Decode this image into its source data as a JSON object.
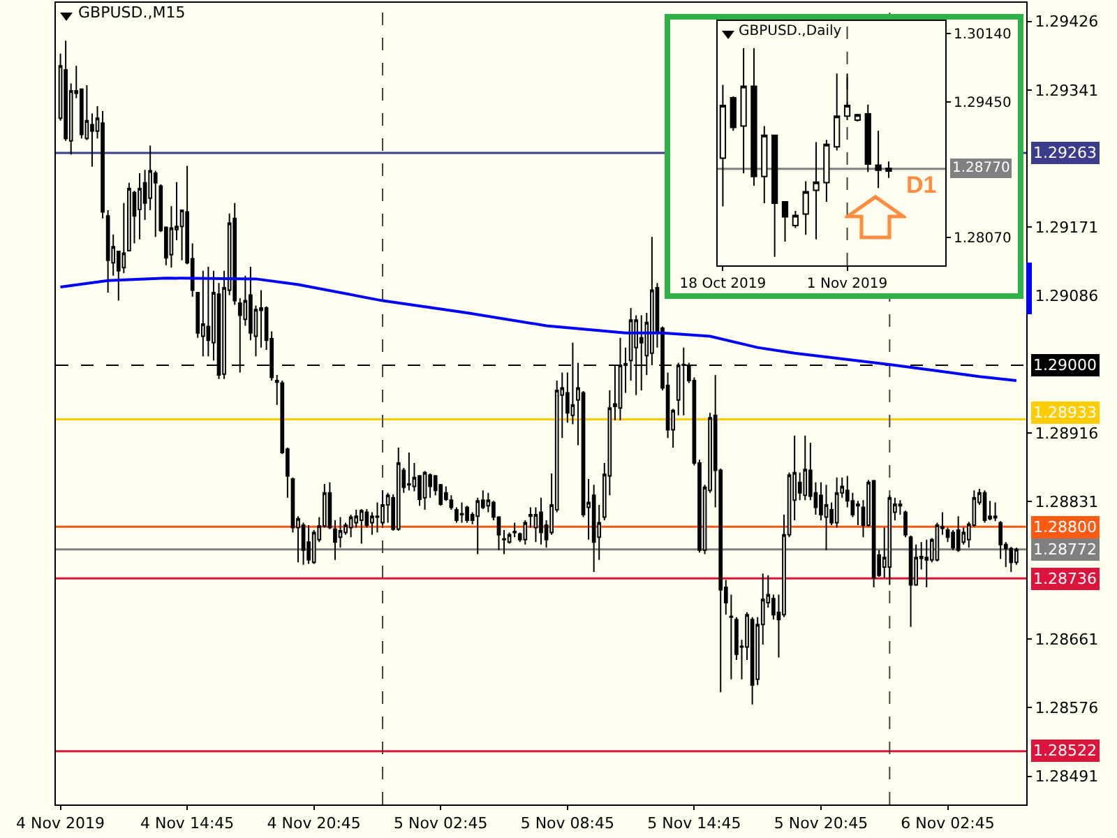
{
  "chart_data": [
    {
      "type": "candlestick",
      "title": "GBPUSD.,M15",
      "color": "#000000",
      "x": [
        "2019-11-04T08:45",
        "2019-11-04T09:00",
        "2019-11-04T09:15",
        "2019-11-04T09:30",
        "2019-11-04T09:45",
        "2019-11-04T10:00",
        "2019-11-04T10:15",
        "2019-11-04T10:30",
        "2019-11-04T10:45",
        "2019-11-04T11:00",
        "2019-11-04T11:15",
        "2019-11-04T11:30",
        "2019-11-04T11:45",
        "2019-11-04T12:00",
        "2019-11-04T12:15",
        "2019-11-04T12:30",
        "2019-11-04T12:45",
        "2019-11-04T13:00",
        "2019-11-04T13:15",
        "2019-11-04T13:30",
        "2019-11-04T13:45",
        "2019-11-04T14:00",
        "2019-11-04T14:15",
        "2019-11-04T14:30",
        "2019-11-04T14:45",
        "2019-11-04T15:00",
        "2019-11-04T15:15",
        "2019-11-04T15:30",
        "2019-11-04T15:45",
        "2019-11-04T16:00",
        "2019-11-04T16:15",
        "2019-11-04T16:30",
        "2019-11-04T16:45",
        "2019-11-04T17:00",
        "2019-11-04T17:15",
        "2019-11-04T17:30",
        "2019-11-04T17:45",
        "2019-11-04T18:00",
        "2019-11-04T18:15",
        "2019-11-04T18:30",
        "2019-11-04T18:45",
        "2019-11-04T19:00",
        "2019-11-04T19:15",
        "2019-11-04T19:30",
        "2019-11-04T19:45",
        "2019-11-04T20:00",
        "2019-11-04T20:15",
        "2019-11-04T20:30",
        "2019-11-04T20:45",
        "2019-11-04T21:00",
        "2019-11-04T21:15",
        "2019-11-04T21:30",
        "2019-11-04T21:45",
        "2019-11-04T22:00",
        "2019-11-04T22:15",
        "2019-11-04T22:30",
        "2019-11-04T22:45",
        "2019-11-04T23:00",
        "2019-11-04T23:15",
        "2019-11-04T23:30",
        "2019-11-04T23:45",
        "2019-11-05T00:00",
        "2019-11-05T00:15",
        "2019-11-05T00:30",
        "2019-11-05T00:45",
        "2019-11-05T01:00",
        "2019-11-05T01:15",
        "2019-11-05T01:30",
        "2019-11-05T01:45",
        "2019-11-05T02:00",
        "2019-11-05T02:15",
        "2019-11-05T02:30",
        "2019-11-05T02:45",
        "2019-11-05T03:00",
        "2019-11-05T03:15",
        "2019-11-05T03:30",
        "2019-11-05T03:45",
        "2019-11-05T04:00",
        "2019-11-05T04:15",
        "2019-11-05T04:30",
        "2019-11-05T04:45",
        "2019-11-05T05:00",
        "2019-11-05T05:15",
        "2019-11-05T05:30",
        "2019-11-05T05:45",
        "2019-11-05T06:00",
        "2019-11-05T06:15",
        "2019-11-05T06:30",
        "2019-11-05T06:45",
        "2019-11-05T07:00",
        "2019-11-05T07:15",
        "2019-11-05T07:30",
        "2019-11-05T07:45",
        "2019-11-05T08:00",
        "2019-11-05T08:15",
        "2019-11-05T08:30",
        "2019-11-05T08:45",
        "2019-11-05T09:00",
        "2019-11-05T09:15",
        "2019-11-05T09:30",
        "2019-11-05T09:45",
        "2019-11-05T10:00",
        "2019-11-05T10:15",
        "2019-11-05T10:30",
        "2019-11-05T10:45",
        "2019-11-05T11:00",
        "2019-11-05T11:15",
        "2019-11-05T11:30",
        "2019-11-05T11:45",
        "2019-11-05T12:00",
        "2019-11-05T12:15",
        "2019-11-05T12:30",
        "2019-11-05T12:45",
        "2019-11-05T13:00",
        "2019-11-05T13:15",
        "2019-11-05T13:30",
        "2019-11-05T13:45",
        "2019-11-05T14:00",
        "2019-11-05T14:15",
        "2019-11-05T14:30",
        "2019-11-05T14:45",
        "2019-11-05T15:00",
        "2019-11-05T15:15",
        "2019-11-05T15:30",
        "2019-11-05T15:45",
        "2019-11-05T16:00",
        "2019-11-05T16:15",
        "2019-11-05T16:30",
        "2019-11-05T16:45",
        "2019-11-05T17:00",
        "2019-11-05T17:15",
        "2019-11-05T17:30",
        "2019-11-05T17:45",
        "2019-11-05T18:00",
        "2019-11-05T18:15",
        "2019-11-05T18:30",
        "2019-11-05T18:45",
        "2019-11-05T19:00",
        "2019-11-05T19:15",
        "2019-11-05T19:30",
        "2019-11-05T19:45",
        "2019-11-05T20:00",
        "2019-11-05T20:15",
        "2019-11-05T20:30",
        "2019-11-05T20:45",
        "2019-11-05T21:00",
        "2019-11-05T21:15",
        "2019-11-05T21:30",
        "2019-11-05T21:45",
        "2019-11-05T22:00",
        "2019-11-05T22:15",
        "2019-11-05T22:30",
        "2019-11-05T22:45",
        "2019-11-05T23:00",
        "2019-11-05T23:15",
        "2019-11-05T23:30",
        "2019-11-05T23:45",
        "2019-11-06T00:00",
        "2019-11-06T00:15",
        "2019-11-06T00:30",
        "2019-11-06T00:45",
        "2019-11-06T01:00",
        "2019-11-06T01:15",
        "2019-11-06T01:30",
        "2019-11-06T01:45",
        "2019-11-06T02:00",
        "2019-11-06T02:15",
        "2019-11-06T02:30",
        "2019-11-06T02:45",
        "2019-11-06T03:00",
        "2019-11-06T03:15",
        "2019-11-06T03:30",
        "2019-11-06T03:45",
        "2019-11-06T04:00",
        "2019-11-06T04:15",
        "2019-11-06T04:30",
        "2019-11-06T04:45",
        "2019-11-06T05:00",
        "2019-11-06T05:15",
        "2019-11-06T05:30",
        "2019-11-06T05:45",
        "2019-11-06T06:00"
      ],
      "ohlc": [
        [
          1.29306,
          1.29386,
          1.29303,
          1.29371
        ],
        [
          1.29366,
          1.29402,
          1.29278,
          1.29281
        ],
        [
          1.29278,
          1.29349,
          1.29261,
          1.2934
        ],
        [
          1.2934,
          1.29371,
          1.29331,
          1.29337
        ],
        [
          1.29342,
          1.29343,
          1.29281,
          1.29286
        ],
        [
          1.29281,
          1.29347,
          1.29279,
          1.29303
        ],
        [
          1.29298,
          1.29312,
          1.29246,
          1.2929
        ],
        [
          1.2929,
          1.29321,
          1.29281,
          1.29306
        ],
        [
          1.293,
          1.29315,
          1.29182,
          1.2919
        ],
        [
          1.29185,
          1.29192,
          1.2909,
          1.2913
        ],
        [
          1.29127,
          1.29162,
          1.29111,
          1.29147
        ],
        [
          1.29141,
          1.29142,
          1.2908,
          1.29117
        ],
        [
          1.29121,
          1.29201,
          1.29114,
          1.29139
        ],
        [
          1.29142,
          1.29226,
          1.29141,
          1.29219
        ],
        [
          1.29214,
          1.29216,
          1.29151,
          1.29185
        ],
        [
          1.29193,
          1.29238,
          1.29156,
          1.29219
        ],
        [
          1.29226,
          1.29242,
          1.2918,
          1.29201
        ],
        [
          1.29207,
          1.29272,
          1.29192,
          1.29241
        ],
        [
          1.29238,
          1.29241,
          1.29159,
          1.29226
        ],
        [
          1.29222,
          1.29224,
          1.29165,
          1.29167
        ],
        [
          1.29171,
          1.29172,
          1.29124,
          1.29133
        ],
        [
          1.29137,
          1.29197,
          1.29121,
          1.2917
        ],
        [
          1.29168,
          1.29227,
          1.29155,
          1.29172
        ],
        [
          1.29172,
          1.29193,
          1.2913,
          1.29192
        ],
        [
          1.2919,
          1.29247,
          1.29125,
          1.29127
        ],
        [
          1.29132,
          1.29151,
          1.29085,
          1.29093
        ],
        [
          1.2909,
          1.29091,
          1.29034,
          1.2904
        ],
        [
          1.29036,
          1.29117,
          1.29011,
          1.29051
        ],
        [
          1.29048,
          1.29122,
          1.29011,
          1.29031
        ],
        [
          1.29028,
          1.29117,
          1.29006,
          1.2909
        ],
        [
          1.29088,
          1.29102,
          1.28983,
          1.28988
        ],
        [
          1.28989,
          1.29117,
          1.28983,
          1.29096
        ],
        [
          1.29093,
          1.29188,
          1.29087,
          1.29176
        ],
        [
          1.29182,
          1.29201,
          1.29075,
          1.2908
        ],
        [
          1.29077,
          1.29083,
          1.28991,
          1.29062
        ],
        [
          1.29057,
          1.29111,
          1.29049,
          1.2908
        ],
        [
          1.29087,
          1.29122,
          1.29031,
          1.2904
        ],
        [
          1.29036,
          1.29074,
          1.29011,
          1.29069
        ],
        [
          1.29068,
          1.29093,
          1.29022,
          1.29071
        ],
        [
          1.29071,
          1.29073,
          1.29019,
          1.29031
        ],
        [
          1.29033,
          1.29042,
          1.28981,
          1.28985
        ],
        [
          1.28981,
          1.28988,
          1.28951,
          1.28979
        ],
        [
          1.28978,
          1.28981,
          1.2889,
          1.28892
        ],
        [
          1.28896,
          1.28898,
          1.28836,
          1.28863
        ],
        [
          1.28859,
          1.28861,
          1.28793,
          1.28799
        ],
        [
          1.28799,
          1.28813,
          1.28756,
          1.2881
        ],
        [
          1.28802,
          1.28805,
          1.28753,
          1.28771
        ],
        [
          1.28781,
          1.28802,
          1.28754,
          1.28759
        ],
        [
          1.28756,
          1.28796,
          1.28754,
          1.28793
        ],
        [
          1.28784,
          1.28812,
          1.28781,
          1.28801
        ],
        [
          1.28801,
          1.28853,
          1.28799,
          1.28842
        ],
        [
          1.28842,
          1.28855,
          1.28797,
          1.28799
        ],
        [
          1.28797,
          1.28808,
          1.28759,
          1.28781
        ],
        [
          1.28787,
          1.28812,
          1.28774,
          1.28795
        ],
        [
          1.28793,
          1.28805,
          1.2879,
          1.28802
        ],
        [
          1.28799,
          1.28815,
          1.28787,
          1.28812
        ],
        [
          1.28805,
          1.28821,
          1.28799,
          1.28813
        ],
        [
          1.28808,
          1.28822,
          1.28779,
          1.2882
        ],
        [
          1.28818,
          1.28822,
          1.28799,
          1.28802
        ],
        [
          1.28805,
          1.28818,
          1.2879,
          1.28813
        ],
        [
          1.28812,
          1.2883,
          1.28793,
          1.28813
        ],
        [
          1.28805,
          1.28845,
          1.28802,
          1.28827
        ],
        [
          1.28827,
          1.28842,
          1.28805,
          1.28839
        ],
        [
          1.28836,
          1.2884,
          1.28795,
          1.28797
        ],
        [
          1.28797,
          1.28898,
          1.28795,
          1.28879
        ],
        [
          1.2887,
          1.28873,
          1.28842,
          1.28849
        ],
        [
          1.28852,
          1.28892,
          1.28845,
          1.28853
        ],
        [
          1.2885,
          1.28879,
          1.28844,
          1.28861
        ],
        [
          1.28863,
          1.28864,
          1.28826,
          1.28834
        ],
        [
          1.28836,
          1.28869,
          1.28821,
          1.28867
        ],
        [
          1.28864,
          1.28866,
          1.28836,
          1.2885
        ],
        [
          1.28863,
          1.28864,
          1.28839,
          1.28845
        ],
        [
          1.28852,
          1.28853,
          1.28826,
          1.28828
        ],
        [
          1.28842,
          1.2885,
          1.28832,
          1.28834
        ],
        [
          1.28833,
          1.28839,
          1.28821,
          1.28824
        ],
        [
          1.28821,
          1.28824,
          1.28805,
          1.28808
        ],
        [
          1.28815,
          1.2883,
          1.28805,
          1.28816
        ],
        [
          1.28824,
          1.28826,
          1.28805,
          1.28808
        ],
        [
          1.28815,
          1.28818,
          1.28803,
          1.28808
        ],
        [
          1.28813,
          1.28836,
          1.28766,
          1.28832
        ],
        [
          1.28833,
          1.28845,
          1.28822,
          1.28824
        ],
        [
          1.28826,
          1.28842,
          1.28818,
          1.28833
        ],
        [
          1.2883,
          1.28832,
          1.28808,
          1.28812
        ],
        [
          1.28812,
          1.28813,
          1.28771,
          1.2879
        ],
        [
          1.28784,
          1.28796,
          1.28766,
          1.28785
        ],
        [
          1.28781,
          1.28793,
          1.28779,
          1.2879
        ],
        [
          1.28793,
          1.28805,
          1.28787,
          1.28794
        ],
        [
          1.28791,
          1.28793,
          1.28781,
          1.28784
        ],
        [
          1.28784,
          1.28808,
          1.28778,
          1.28805
        ],
        [
          1.28815,
          1.28824,
          1.28799,
          1.28813
        ],
        [
          1.28799,
          1.28824,
          1.28781,
          1.28815
        ],
        [
          1.28818,
          1.28836,
          1.28778,
          1.28793
        ],
        [
          1.28802,
          1.28808,
          1.28774,
          1.28784
        ],
        [
          1.28793,
          1.28866,
          1.2879,
          1.28827
        ],
        [
          1.28821,
          1.28981,
          1.28818,
          1.28969
        ],
        [
          1.28963,
          1.28991,
          1.2891,
          1.28972
        ],
        [
          1.28966,
          1.28991,
          1.28929,
          1.28941
        ],
        [
          1.28938,
          1.29028,
          1.28927,
          1.28951
        ],
        [
          1.28957,
          1.29003,
          1.28901,
          1.28972
        ],
        [
          1.28966,
          1.28968,
          1.28812,
          1.28815
        ],
        [
          1.28824,
          1.28859,
          1.28784,
          1.2883
        ],
        [
          1.28839,
          1.28852,
          1.28744,
          1.28781
        ],
        [
          1.28787,
          1.28827,
          1.28759,
          1.28805
        ],
        [
          1.28812,
          1.28879,
          1.28808,
          1.28865
        ],
        [
          1.28863,
          1.28969,
          1.28839,
          1.28947
        ],
        [
          1.28949,
          1.29,
          1.28932,
          1.28952
        ],
        [
          1.28947,
          1.29034,
          1.28932,
          1.29
        ],
        [
          1.29,
          1.29022,
          1.28966,
          1.29002
        ],
        [
          1.29006,
          1.29071,
          1.28981,
          1.29056
        ],
        [
          1.29022,
          1.29062,
          1.28963,
          1.29056
        ],
        [
          1.29034,
          1.29062,
          1.28969,
          1.29028
        ],
        [
          1.29012,
          1.29065,
          1.28988,
          1.29053
        ],
        [
          1.29015,
          1.29159,
          1.29,
          1.29093
        ],
        [
          1.29096,
          1.29102,
          1.29022,
          1.2904
        ],
        [
          1.29046,
          1.29048,
          1.28969,
          1.28972
        ],
        [
          1.28975,
          1.28991,
          1.2891,
          1.2892
        ],
        [
          1.2892,
          1.28946,
          1.28898,
          1.28944
        ],
        [
          1.28957,
          1.29003,
          1.28938,
          1.29
        ],
        [
          1.29,
          1.29022,
          1.28938,
          1.29001
        ],
        [
          1.29,
          1.29003,
          1.28978,
          1.28981
        ],
        [
          1.28981,
          1.28985,
          1.28876,
          1.28879
        ],
        [
          1.28879,
          1.28883,
          1.28768,
          1.28771
        ],
        [
          1.28771,
          1.28852,
          1.28766,
          1.28849
        ],
        [
          1.28845,
          1.28941,
          1.28842,
          1.28935
        ],
        [
          1.28938,
          1.28988,
          1.28824,
          1.2887
        ],
        [
          1.2887,
          1.28872,
          1.28595,
          1.28722
        ],
        [
          1.28725,
          1.28734,
          1.28691,
          1.28706
        ],
        [
          1.28688,
          1.28716,
          1.28611,
          1.28689
        ],
        [
          1.28685,
          1.28688,
          1.28635,
          1.28642
        ],
        [
          1.28651,
          1.2866,
          1.28611,
          1.28652
        ],
        [
          1.28651,
          1.28694,
          1.28635,
          1.28691
        ],
        [
          1.28685,
          1.28688,
          1.2858,
          1.28604
        ],
        [
          1.28611,
          1.28688,
          1.28604,
          1.28679
        ],
        [
          1.28679,
          1.28742,
          1.28654,
          1.2871
        ],
        [
          1.28706,
          1.2874,
          1.287,
          1.28716
        ],
        [
          1.28711,
          1.28716,
          1.28685,
          1.28691
        ],
        [
          1.28694,
          1.28716,
          1.28638,
          1.28685
        ],
        [
          1.28691,
          1.28815,
          1.28688,
          1.2879
        ],
        [
          1.2879,
          1.28867,
          1.28787,
          1.28864
        ],
        [
          1.28833,
          1.28913,
          1.28808,
          1.28867
        ],
        [
          1.28855,
          1.28867,
          1.28833,
          1.28842
        ],
        [
          1.28839,
          1.28913,
          1.28833,
          1.28871
        ],
        [
          1.2887,
          1.28904,
          1.28833,
          1.28838
        ],
        [
          1.28842,
          1.28855,
          1.28815,
          1.28824
        ],
        [
          1.28839,
          1.28855,
          1.28808,
          1.28815
        ],
        [
          1.28812,
          1.28852,
          1.28771,
          1.28827
        ],
        [
          1.28821,
          1.2883,
          1.28802,
          1.28805
        ],
        [
          1.28805,
          1.28861,
          1.28799,
          1.28842
        ],
        [
          1.28842,
          1.28861,
          1.28836,
          1.2885
        ],
        [
          1.28845,
          1.28863,
          1.28824,
          1.28832
        ],
        [
          1.28832,
          1.28842,
          1.28812,
          1.28815
        ],
        [
          1.28826,
          1.28832,
          1.28802,
          1.28828
        ],
        [
          1.28824,
          1.28833,
          1.28787,
          1.28802
        ],
        [
          1.28802,
          1.28858,
          1.288,
          1.28855
        ],
        [
          1.28857,
          1.28858,
          1.28725,
          1.28737
        ],
        [
          1.28765,
          1.28771,
          1.28738,
          1.2874
        ],
        [
          1.2875,
          1.28799,
          1.28737,
          1.28762
        ],
        [
          1.2875,
          1.28839,
          1.28728,
          1.28836
        ],
        [
          1.28818,
          1.28836,
          1.28808,
          1.28828
        ],
        [
          1.28826,
          1.28833,
          1.28815,
          1.28828
        ],
        [
          1.28818,
          1.2882,
          1.28787,
          1.2879
        ],
        [
          1.28787,
          1.28789,
          1.28676,
          1.28728
        ],
        [
          1.28728,
          1.28778,
          1.28727,
          1.28762
        ],
        [
          1.28761,
          1.28781,
          1.28747,
          1.28763
        ],
        [
          1.28762,
          1.28784,
          1.28725,
          1.28759
        ],
        [
          1.28759,
          1.28786,
          1.28756,
          1.28784
        ],
        [
          1.28759,
          1.28805,
          1.28757,
          1.28802
        ],
        [
          1.28798,
          1.28818,
          1.2879,
          1.288
        ],
        [
          1.28796,
          1.28799,
          1.28781,
          1.28787
        ],
        [
          1.28793,
          1.28796,
          1.28771,
          1.28774
        ],
        [
          1.28796,
          1.28813,
          1.28769,
          1.28771
        ],
        [
          1.28781,
          1.28799,
          1.28778,
          1.28793
        ],
        [
          1.28784,
          1.28806,
          1.28774,
          1.28803
        ],
        [
          1.28802,
          1.28845,
          1.288,
          1.28836
        ],
        [
          1.2883,
          1.28847,
          1.28827,
          1.28842
        ],
        [
          1.28842,
          1.28845,
          1.28805,
          1.28808
        ],
        [
          1.2881,
          1.28832,
          1.28808,
          1.28813
        ],
        [
          1.28813,
          1.2883,
          1.28807,
          1.28811
        ],
        [
          1.28805,
          1.28807,
          1.2876,
          1.28778
        ],
        [
          1.28778,
          1.28781,
          1.2875,
          1.28773
        ],
        [
          1.28773,
          1.28775,
          1.28744,
          1.28756
        ],
        [
          1.28756,
          1.28774,
          1.28753,
          1.28772
        ]
      ],
      "series": [
        {
          "type": "line",
          "color": "#0000ff",
          "x": [
            "2019-11-04T08:45",
            "2019-11-04T11:00",
            "2019-11-04T13:45",
            "2019-11-04T18:00",
            "2019-11-04T20:00",
            "2019-11-05T00:00",
            "2019-11-05T04:00",
            "2019-11-05T07:45",
            "2019-11-05T11:30",
            "2019-11-05T13:15",
            "2019-11-05T15:30",
            "2019-11-05T17:45",
            "2019-11-05T19:30",
            "2019-11-06T00:00",
            "2019-11-06T02:00",
            "2019-11-06T04:15",
            "2019-11-06T06:00"
          ],
          "values": [
            1.29097,
            1.29105,
            1.29108,
            1.29107,
            1.291,
            1.2908,
            1.29065,
            1.29049,
            1.2904,
            1.2904,
            1.29036,
            1.29022,
            1.29015,
            1.29001,
            1.28994,
            1.28986,
            1.28981
          ]
        }
      ],
      "xlim": [
        "2019-11-04T08:32",
        "2019-11-06T06:28"
      ],
      "xticks": [
        {
          "value": "2019-11-04T08:45",
          "label": "4 Nov 2019"
        },
        {
          "value": "2019-11-04T14:45",
          "label": "4 Nov 14:45"
        },
        {
          "value": "2019-11-04T20:45",
          "label": "4 Nov 20:45"
        },
        {
          "value": "2019-11-05T02:45",
          "label": "5 Nov 02:45"
        },
        {
          "value": "2019-11-05T08:45",
          "label": "5 Nov 08:45"
        },
        {
          "value": "2019-11-05T14:45",
          "label": "5 Nov 14:45"
        },
        {
          "value": "2019-11-05T20:45",
          "label": "5 Nov 20:45"
        },
        {
          "value": "2019-11-06T02:45",
          "label": "6 Nov 02:45"
        }
      ],
      "ylim": [
        1.28456,
        1.29449
      ],
      "yticks": [
        1.28491,
        1.28576,
        1.28661,
        1.28831,
        1.28916,
        1.29086,
        1.29171,
        1.29341,
        1.29426
      ],
      "ref_lines": [
        {
          "axis": "y",
          "value": 1.29263,
          "label": "1.29263",
          "color": "#3c3c8c"
        },
        {
          "axis": "y",
          "value": 1.29,
          "label": "1.29000",
          "color": "#000000",
          "line_style": "dashed"
        },
        {
          "axis": "y",
          "value": 1.28933,
          "label": "1.28933",
          "color": "#ffcc00"
        },
        {
          "axis": "y",
          "value": 1.288,
          "label": "1.28800",
          "color": "#ff5a14"
        },
        {
          "axis": "y",
          "value": 1.28772,
          "label": "1.28772",
          "color": "#808080"
        },
        {
          "axis": "y",
          "value": 1.28736,
          "label": "1.28736",
          "color": "#dc143c"
        },
        {
          "axis": "y",
          "value": 1.28522,
          "label": "1.28522",
          "color": "#dc143c"
        },
        {
          "axis": "x",
          "value": "2019-11-05T00:00",
          "color": "#404040",
          "line_style": "dashed"
        },
        {
          "axis": "x",
          "value": "2019-11-06T00:00",
          "color": "#404040",
          "line_style": "dashed"
        }
      ]
    },
    {
      "type": "candlestick",
      "title": "GBPUSD.,Daily",
      "color": "#000000",
      "categories": [
        "18 Oct 2019",
        null,
        null,
        null,
        null,
        null,
        null,
        null,
        null,
        null,
        null,
        null,
        "1 Nov 2019",
        null,
        null,
        null,
        null
      ],
      "ohlc": [
        [
          1.28877,
          1.29621,
          1.28389,
          1.29412
        ],
        [
          1.29491,
          1.29505,
          1.29156,
          1.29189
        ],
        [
          1.29203,
          1.29993,
          1.28723,
          1.29607
        ],
        [
          1.29607,
          1.29993,
          1.28598,
          1.28691
        ],
        [
          1.28691,
          1.29203,
          1.28421,
          1.2911
        ],
        [
          1.2911,
          1.29115,
          1.27877,
          1.28421
        ],
        [
          1.28435,
          1.2844,
          1.2803,
          1.28282
        ],
        [
          1.28193,
          1.28342,
          1.2817,
          1.28296
        ],
        [
          1.2831,
          1.28644,
          1.281,
          1.28537
        ],
        [
          1.28551,
          1.2904,
          1.28054,
          1.28635
        ],
        [
          1.2863,
          1.29063,
          1.28435,
          1.29017
        ],
        [
          1.28993,
          1.29737,
          1.28956,
          1.29305
        ],
        [
          1.29305,
          1.29737,
          1.29263,
          1.29412
        ],
        [
          1.29263,
          1.29328,
          1.29249,
          1.29319
        ],
        [
          1.29328,
          1.29421,
          1.28737,
          1.28817
        ],
        [
          1.28807,
          1.29156,
          1.28575,
          1.28756
        ],
        [
          1.28747,
          1.28844,
          1.28677,
          1.28775
        ]
      ],
      "ylim": [
        1.2779,
        1.3027
      ],
      "yticks": [
        {
          "value": 1.2807,
          "label": "1.28070"
        },
        {
          "value": 1.2945,
          "label": "1.29450"
        },
        {
          "value": 1.3014,
          "label": "1.30140"
        }
      ],
      "ref_lines": [
        {
          "axis": "y",
          "value": 1.2877,
          "label": "1.28770",
          "color": "#808080"
        },
        {
          "axis": "x",
          "value": "1 Nov 2019",
          "color": "#404040",
          "line_style": "dashed"
        }
      ],
      "annotations": [
        "D1"
      ]
    }
  ]
}
